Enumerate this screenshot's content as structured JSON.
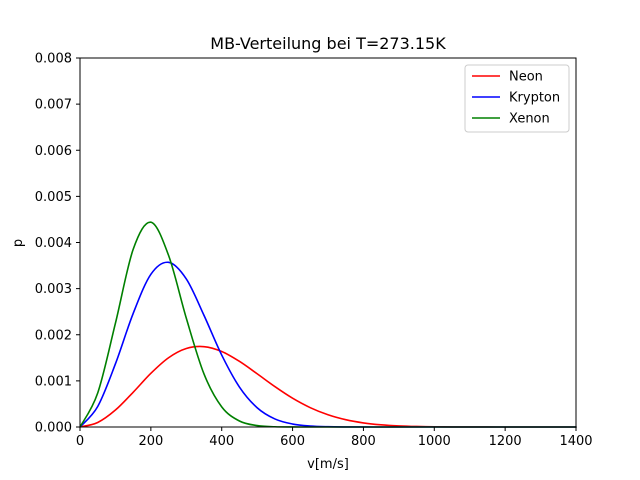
{
  "chart_data": {
    "type": "line",
    "title": "MB-Verteilung bei T=273.15K",
    "xlabel": "v[m/s]",
    "ylabel": "p",
    "xlim": [
      0,
      1400
    ],
    "ylim": [
      0,
      0.008
    ],
    "xticks": [
      0,
      200,
      400,
      600,
      800,
      1000,
      1200,
      1400
    ],
    "xtick_labels": [
      "0",
      "200",
      "400",
      "600",
      "800",
      "1000",
      "1200",
      "1400"
    ],
    "yticks": [
      0,
      0.001,
      0.002,
      0.003,
      0.004,
      0.005,
      0.006,
      0.007,
      0.008
    ],
    "ytick_labels": [
      "0.000",
      "0.001",
      "0.002",
      "0.003",
      "0.004",
      "0.005",
      "0.006",
      "0.007",
      "0.008"
    ],
    "grid": false,
    "legend_position": "top-right",
    "x": [
      0,
      50,
      100,
      150,
      200,
      250,
      300,
      350,
      400,
      450,
      500,
      550,
      600,
      650,
      700,
      750,
      800,
      850,
      900,
      950,
      1000,
      1050,
      1100,
      1150,
      1200,
      1250,
      1300,
      1350,
      1400
    ],
    "series": [
      {
        "name": "Neon",
        "color": "#ff0000",
        "values": [
          0,
          9.82e-05,
          0.000368,
          0.000753,
          0.001163,
          0.001501,
          0.001701,
          0.001742,
          0.001637,
          0.001423,
          0.001154,
          0.000876,
          0.000624,
          0.000419,
          0.000265,
          0.000158,
          8.88e-05,
          4.72e-05,
          2.38e-05,
          1.13e-05,
          5.13e-06,
          2.2e-06,
          8.9e-07,
          3.4e-07,
          1.2e-07,
          4e-08,
          1e-08,
          0,
          0
        ]
      },
      {
        "name": "Krypton",
        "color": "#0000ff",
        "values": [
          0,
          0.000445,
          0.00137,
          0.00246,
          0.00331,
          0.00357,
          0.00321,
          0.00242,
          0.00156,
          0.000867,
          0.000418,
          0.000175,
          6.44e-05,
          2.09e-05,
          6.02e-06,
          1.54e-06,
          3.5e-07,
          7e-08,
          1e-08,
          0,
          0,
          0,
          0,
          0,
          0,
          0,
          0,
          0,
          0
        ]
      },
      {
        "name": "Xenon",
        "color": "#008000",
        "values": [
          0,
          0.000738,
          0.00225,
          0.00385,
          0.00444,
          0.00372,
          0.00236,
          0.00115,
          0.000437,
          0.00013,
          3.03e-05,
          5.56e-06,
          8e-07,
          9e-08,
          1e-08,
          0,
          0,
          0,
          0,
          0,
          0,
          0,
          0,
          0,
          0,
          0,
          0,
          0,
          0
        ]
      }
    ]
  }
}
